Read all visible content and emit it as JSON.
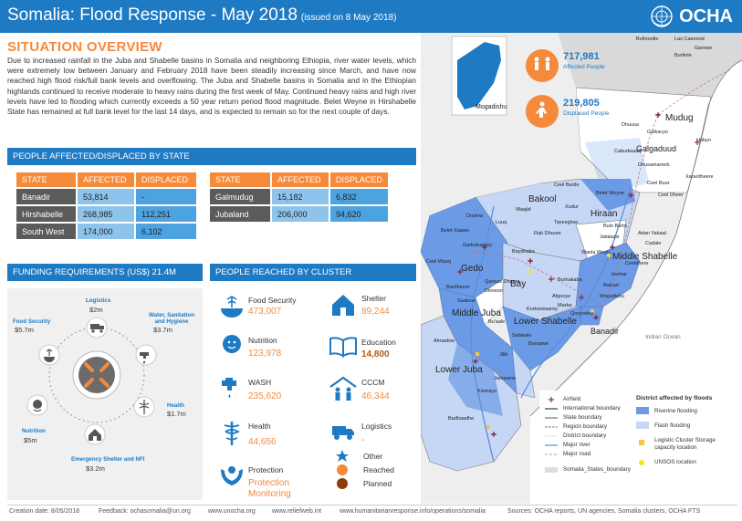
{
  "header": {
    "title": "Somalia: Flood Response - May 2018",
    "subtitle": "(issued on 8 May 2018)",
    "logo_text": "OCHA"
  },
  "overview": {
    "title": "SITUATION OVERVIEW",
    "text": "Due to increased rainfall in the Juba and Shabelle basins in Somalia and neighboring Ethiopia, river water levels, which were extremely low between January and February 2018 have been steadily increasing since March, and have now reached high flood risk/full bank levels and overflowing. The Juba and Shabelle basins in Somalia and in the Ethiopian highlands continued to receive moderate to heavy rains during the first week of May.   Continued heavy rains and high river levels have led to flooding which currently exceeds a 50 year return period flood magnitude. Belet Weyne in Hirshabelle State has remained at full bank level for the last 14 days, and is expected to remain so for the next couple of days."
  },
  "sections": {
    "people_affected": "PEOPLE AFFECTED/DISPLACED BY STATE",
    "funding": "FUNDING REQUIREMENTS (US$) 21.4M",
    "people_reached": "PEOPLE REACHED BY CLUSTER"
  },
  "state_table": {
    "headers": [
      "STATE",
      "AFFECTED",
      "DISPLACED"
    ],
    "left_rows": [
      [
        "Banadir",
        "53,814",
        "-"
      ],
      [
        "Hirshabelle",
        "268,985",
        "112,251"
      ],
      [
        "South West",
        "174,000",
        "6,102"
      ]
    ],
    "right_rows": [
      [
        "Galmudug",
        "15,182",
        "6,832"
      ],
      [
        "Jubaland",
        "206,000",
        "94,620"
      ]
    ]
  },
  "funding": {
    "logistics": {
      "label": "Logistics",
      "value": "$2m"
    },
    "wash": {
      "label": "Water, Sanitation and Hygiene",
      "value": "$3.7m"
    },
    "food": {
      "label": "Food Security",
      "value": "$5.7m"
    },
    "health": {
      "label": "Health",
      "value": "$1.7m"
    },
    "nutrition": {
      "label": "Nutrition",
      "value": "$5m"
    },
    "shelter": {
      "label": "Emergency Shelter and NFI",
      "value": "$3.2m"
    }
  },
  "clusters": {
    "food": {
      "label": "Food Security",
      "value": "473,007"
    },
    "shelter": {
      "label": "Shelter",
      "value": "89,244"
    },
    "nutrition": {
      "label": "Nutrition",
      "value": "123,978"
    },
    "education": {
      "label": "Education",
      "value": "14,800"
    },
    "wash": {
      "label": "WASH",
      "value": "235,620"
    },
    "cccm": {
      "label": "CCCM",
      "value": "46,344"
    },
    "health": {
      "label": "Health",
      "value": "44,656"
    },
    "logistics": {
      "label": "Logistics",
      "value": "-"
    },
    "protection": {
      "label": "Protection",
      "value": "Protection Monitoring"
    }
  },
  "cluster_legend": {
    "other": "Other",
    "reached": "Reached",
    "planned": "Planned"
  },
  "map": {
    "affected_value": "717,981",
    "affected_label": "Affected People",
    "displaced_value": "219,805",
    "displaced_label": "Displaced People",
    "inset_label": "Mogadishu",
    "regions": {
      "mudug": "Mudug",
      "galgaduud": "Galgaduud",
      "bakool": "Bakool",
      "hiraan": "Hiraan",
      "gedo": "Gedo",
      "bay": "Bay",
      "middle_shabelle": "Middle Shabelle",
      "banadir": "Banadir",
      "middle_juba": "Middle Juba",
      "lower_shabelle": "Lower Shabelle",
      "lower_juba": "Lower Juba",
      "ocean": "Indian Ocean"
    },
    "districts": {
      "bulhoodle": "Bulhoodle",
      "las_caanood": "Las Caanood",
      "garowe": "Garowe",
      "burtinle": "Burtinle",
      "hobyo": "Hobyo",
      "galkacyo": "Galkacyo",
      "cabudwaaq": "Cabudwaaq",
      "dhusamareeb": "Dhusamareeb",
      "ceel_buur": "Ceel Buur",
      "ceel_barde": "Ceel Barde",
      "belet_weyne": "Belet Weyne",
      "doolow": "Doolow",
      "luuq": "Luuq",
      "belet_xaawo": "Belet Xaawo",
      "bulo_burto": "Bulo Burto",
      "jalalaqsi": "Jalalaqsi",
      "adan_yabaal": "Adan Yabaal",
      "cadale": "Cadale",
      "jowhar": "Jowhar",
      "baydhaba": "Baydhaba",
      "burhakaba": "Burhakaba",
      "balcad": "Balcad",
      "afgooye": "Afgooye",
      "mogadishu": "Mogadishu",
      "marka": "Marka",
      "qoryooley": "Qoryooley",
      "kurtunwaarey": "Kurtunwaarey",
      "sablaale": "Sablaale",
      "baraawe": "Baraawe",
      "bu_aale": "Bu'aale",
      "saakow": "Saakow",
      "afmadow": "Afmadow",
      "kismayo": "Kismayo",
      "badhaadhe": "Badhaadhe",
      "jilib": "Jilib",
      "jamaame": "Jamaame",
      "garbahaarey": "Garbahaarey",
      "ceel_waaq": "Ceel Waaq",
      "waajid": "Waajid",
      "tayeeglow": "Tayeeglow",
      "rab_dhuure": "Rab Dhuure",
      "qansax_dheere": "Qansax Dheere",
      "diinsoor": "Diinsoor",
      "xudur": "Xudur",
      "wanla_weyn": "Wanla Weyn",
      "ceel_dheer": "Ceel Dheer",
      "xarardheere": "Xarardheere",
      "bardheere": "Bardheere",
      "dhuusa": "Dhuusa",
      "ceeldhere": "Ceeldhere"
    },
    "legend": {
      "airfield": "Airfield",
      "intl_boundary": "International boundary",
      "state_boundary": "State boundary",
      "region_boundary": "Region boundary",
      "district_boundary": "District boundary",
      "major_river": "Major river",
      "major_road": "Major road",
      "somalia_states": "Somalia_States_boundary",
      "districts_title": "District affected by floods",
      "riverine": "Riverine flooding",
      "flash": "Flash flooding",
      "logistics_storage": "Logistic Cluster Storage capacity location",
      "unsos": "UNSOS location"
    },
    "colors": {
      "riverine": "#6b9be6",
      "flash": "#c6d6f5",
      "ocean": "#ffffff",
      "land": "#eeeeee"
    }
  },
  "footer": {
    "creation": "Creation date: 8/05/2018",
    "feedback": "Feedback: ochasomalia@un.org",
    "site1": "www.unocha.org",
    "site2": "www.reliefweb.int",
    "site3": "www.humanitarianresponse.info/operations/somalia",
    "sources": "Sources: OCHA reports, UN agencies,  Somalia clusters,  OCHA FTS"
  }
}
